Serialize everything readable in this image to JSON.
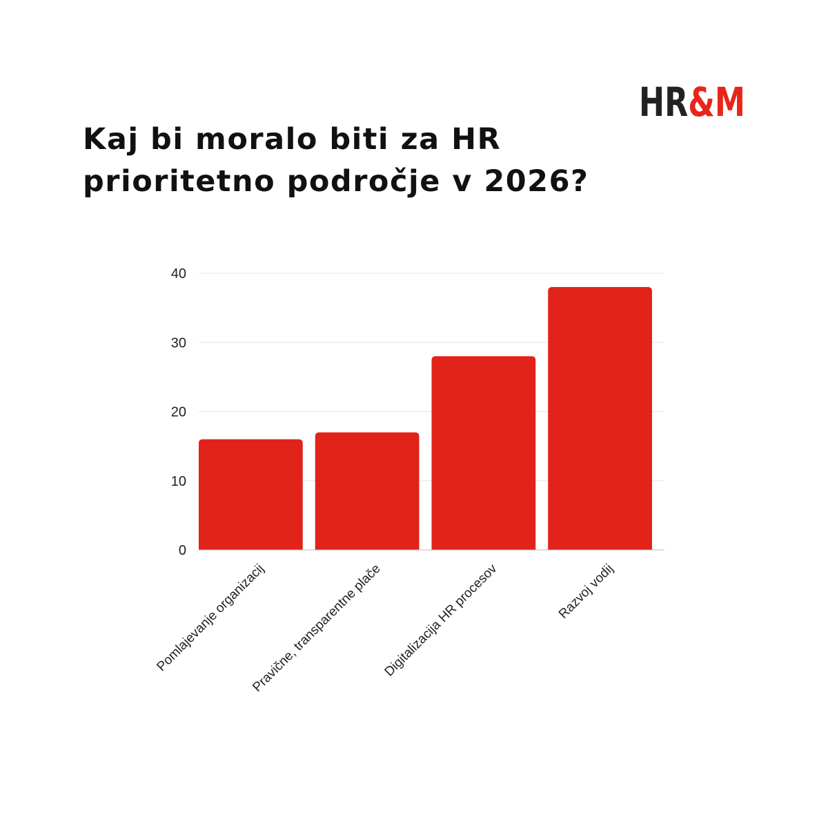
{
  "logo": {
    "text": "HR&M",
    "colors": {
      "dark": "#222222",
      "accent": "#e8251a"
    }
  },
  "title_lines": [
    "Kaj bi moralo biti za HR",
    "prioritetno področje v 2026?"
  ],
  "chart_data": {
    "type": "bar",
    "title": "Kaj bi moralo biti za HR prioritetno področje v 2026?",
    "categories": [
      "Pomlajevanje organizacij",
      "Pravične, transparentne plače",
      "Digitalizacija HR procesov",
      "Razvoj vodij"
    ],
    "values": [
      16,
      17,
      28,
      38
    ],
    "ylim": [
      0,
      40
    ],
    "yticks": [
      0,
      10,
      20,
      30,
      40
    ],
    "xlabel": "",
    "ylabel": "",
    "grid": true,
    "legend": "none",
    "bar_color": "#e2231a",
    "grid_color": "#e3e3e3"
  }
}
